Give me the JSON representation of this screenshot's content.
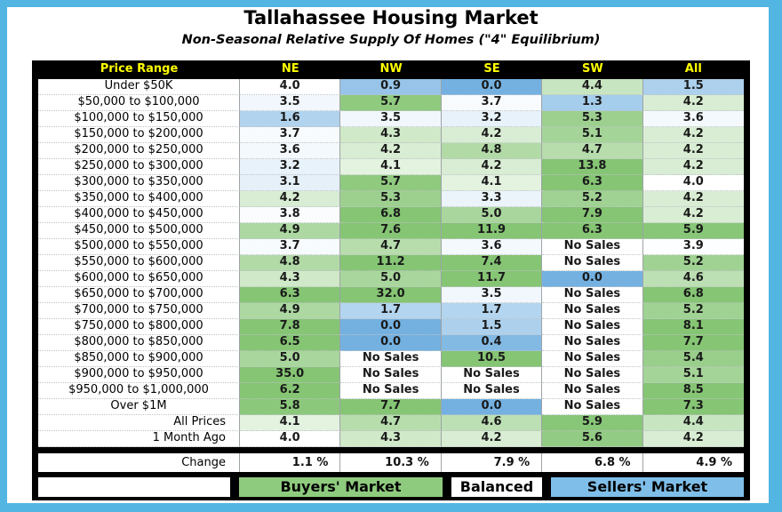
{
  "title": "Tallahassee Housing Market",
  "subtitle": "Non-Seasonal Relative Supply Of Homes (\"4\" Equilibrium)",
  "frame_color": "#53B5E1",
  "header": {
    "bg": "#000000",
    "text_color": "#FFFF00"
  },
  "chart_data": {
    "type": "table",
    "columns": [
      "Price Range",
      "NE",
      "NW",
      "SE",
      "SW",
      "All"
    ],
    "no_sales_text": "No Sales",
    "equilibrium": 4,
    "color_scale": {
      "low": "#74B1E1",
      "mid": "#FFFFFF",
      "high": "#85C574"
    },
    "rows": [
      {
        "label": "Under $50K",
        "values": [
          "4.0",
          "0.9",
          "0.0",
          "4.4",
          "1.5"
        ]
      },
      {
        "label": "$50,000 to $100,000",
        "values": [
          "3.5",
          "5.7",
          "3.7",
          "1.3",
          "4.2"
        ]
      },
      {
        "label": "$100,000 to $150,000",
        "values": [
          "1.6",
          "3.5",
          "3.2",
          "5.3",
          "3.6"
        ]
      },
      {
        "label": "$150,000 to $200,000",
        "values": [
          "3.7",
          "4.3",
          "4.2",
          "5.1",
          "4.2"
        ]
      },
      {
        "label": "$200,000 to $250,000",
        "values": [
          "3.6",
          "4.2",
          "4.8",
          "4.7",
          "4.2"
        ]
      },
      {
        "label": "$250,000 to $300,000",
        "values": [
          "3.2",
          "4.1",
          "4.2",
          "13.8",
          "4.2"
        ]
      },
      {
        "label": "$300,000 to $350,000",
        "values": [
          "3.1",
          "5.7",
          "4.1",
          "6.3",
          "4.0"
        ]
      },
      {
        "label": "$350,000 to $400,000",
        "values": [
          "4.2",
          "5.3",
          "3.3",
          "5.2",
          "4.2"
        ]
      },
      {
        "label": "$400,000 to $450,000",
        "values": [
          "3.8",
          "6.8",
          "5.0",
          "7.9",
          "4.2"
        ]
      },
      {
        "label": "$450,000 to $500,000",
        "values": [
          "4.9",
          "7.6",
          "11.9",
          "6.3",
          "5.9"
        ]
      },
      {
        "label": "$500,000 to $550,000",
        "values": [
          "3.7",
          "4.7",
          "3.6",
          "No Sales",
          "3.9"
        ]
      },
      {
        "label": "$550,000 to $600,000",
        "values": [
          "4.8",
          "11.2",
          "7.4",
          "No Sales",
          "5.2"
        ]
      },
      {
        "label": "$600,000 to $650,000",
        "values": [
          "4.3",
          "5.0",
          "11.7",
          "0.0",
          "4.6"
        ]
      },
      {
        "label": "$650,000 to $700,000",
        "values": [
          "6.3",
          "32.0",
          "3.5",
          "No Sales",
          "6.8"
        ]
      },
      {
        "label": "$700,000 to $750,000",
        "values": [
          "4.9",
          "1.7",
          "1.7",
          "No Sales",
          "5.2"
        ]
      },
      {
        "label": "$750,000 to $800,000",
        "values": [
          "7.8",
          "0.0",
          "1.5",
          "No Sales",
          "8.1"
        ]
      },
      {
        "label": "$800,000 to $850,000",
        "values": [
          "6.5",
          "0.0",
          "0.4",
          "No Sales",
          "7.7"
        ]
      },
      {
        "label": "$850,000 to $900,000",
        "values": [
          "5.0",
          "No Sales",
          "10.5",
          "No Sales",
          "5.4"
        ]
      },
      {
        "label": "$900,000 to $950,000",
        "values": [
          "35.0",
          "No Sales",
          "No Sales",
          "No Sales",
          "5.1"
        ]
      },
      {
        "label": "$950,000 to $1,000,000",
        "values": [
          "6.2",
          "No Sales",
          "No Sales",
          "No Sales",
          "8.5"
        ]
      },
      {
        "label": "Over $1M",
        "values": [
          "5.8",
          "7.7",
          "0.0",
          "No Sales",
          "7.3"
        ]
      },
      {
        "label": "All Prices",
        "align": "right",
        "values": [
          "4.1",
          "4.7",
          "4.6",
          "5.9",
          "4.4"
        ]
      },
      {
        "label": "1 Month Ago",
        "align": "right",
        "values": [
          "4.0",
          "4.3",
          "4.2",
          "5.6",
          "4.2"
        ]
      }
    ],
    "change_row": {
      "label": "Change",
      "values": [
        "1.1 %",
        "10.3 %",
        "7.9 %",
        "6.8 %",
        "4.9 %"
      ]
    }
  },
  "legend": {
    "items": [
      {
        "label": "Buyers' Market",
        "color": "#8FCB7E"
      },
      {
        "label": "Balanced",
        "color": "#FFFFFF"
      },
      {
        "label": "Sellers' Market",
        "color": "#7FBEE8"
      }
    ]
  }
}
